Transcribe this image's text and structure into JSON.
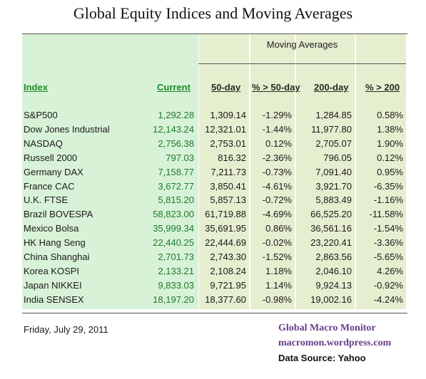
{
  "title": "Global Equity Indices and Moving Averages",
  "group_header": "Moving Averages",
  "headers": {
    "index": "Index",
    "current": "Current",
    "d50": "50-day",
    "p50": "% > 50-day",
    "d200": "200-day",
    "p200": "% > 200"
  },
  "rows": [
    {
      "name": "S&P500",
      "current": "1,292.28",
      "d50": "1,309.14",
      "p50": "-1.29%",
      "d200": "1,284.85",
      "p200": "0.58%"
    },
    {
      "name": "Dow Jones Industrial",
      "current": "12,143.24",
      "d50": "12,321.01",
      "p50": "-1.44%",
      "d200": "11,977.80",
      "p200": "1.38%"
    },
    {
      "name": "NASDAQ",
      "current": "2,756.38",
      "d50": "2,753.01",
      "p50": "0.12%",
      "d200": "2,705.07",
      "p200": "1.90%"
    },
    {
      "name": "Russell 2000",
      "current": "797.03",
      "d50": "816.32",
      "p50": "-2.36%",
      "d200": "796.05",
      "p200": "0.12%"
    },
    {
      "name": "Germany DAX",
      "current": "7,158.77",
      "d50": "7,211.73",
      "p50": "-0.73%",
      "d200": "7,091.40",
      "p200": "0.95%"
    },
    {
      "name": "France CAC",
      "current": "3,672.77",
      "d50": "3,850.41",
      "p50": "-4.61%",
      "d200": "3,921.70",
      "p200": "-6.35%"
    },
    {
      "name": "U.K. FTSE",
      "current": "5,815.20",
      "d50": "5,857.13",
      "p50": "-0.72%",
      "d200": "5,883.49",
      "p200": "-1.16%"
    },
    {
      "name": "Brazil BOVESPA",
      "current": "58,823.00",
      "d50": "61,719.88",
      "p50": "-4.69%",
      "d200": "66,525.20",
      "p200": "-11.58%"
    },
    {
      "name": "Mexico Bolsa",
      "current": "35,999.34",
      "d50": "35,691.95",
      "p50": "0.86%",
      "d200": "36,561.16",
      "p200": "-1.54%"
    },
    {
      "name": "HK  Hang Seng",
      "current": "22,440.25",
      "d50": "22,444.69",
      "p50": "-0.02%",
      "d200": "23,220.41",
      "p200": "-3.36%"
    },
    {
      "name": "China Shanghai",
      "current": "2,701.73",
      "d50": "2,743.30",
      "p50": "-1.52%",
      "d200": "2,863.56",
      "p200": "-5.65%"
    },
    {
      "name": "Korea KOSPI",
      "current": "2,133.21",
      "d50": "2,108.24",
      "p50": "1.18%",
      "d200": "2,046.10",
      "p200": "4.26%"
    },
    {
      "name": "Japan NIKKEI",
      "current": "9,833.03",
      "d50": "9,721.95",
      "p50": "1.14%",
      "d200": "9,924.13",
      "p200": "-0.92%"
    },
    {
      "name": "India SENSEX",
      "current": "18,197.20",
      "d50": "18,377.60",
      "p50": "-0.98%",
      "d200": "19,002.16",
      "p200": "-4.24%"
    }
  ],
  "footer": {
    "date": "Friday, July 29, 2011",
    "brand": "Global Macro Monitor",
    "site": "macromon.wordpress.com",
    "source": "Data Source: Yahoo"
  },
  "colors": {
    "index_bg": "#d8f2d8",
    "ma_bg": "#e6eed0",
    "current_text": "#1d7a28",
    "brand_text": "#6a3d8a"
  }
}
